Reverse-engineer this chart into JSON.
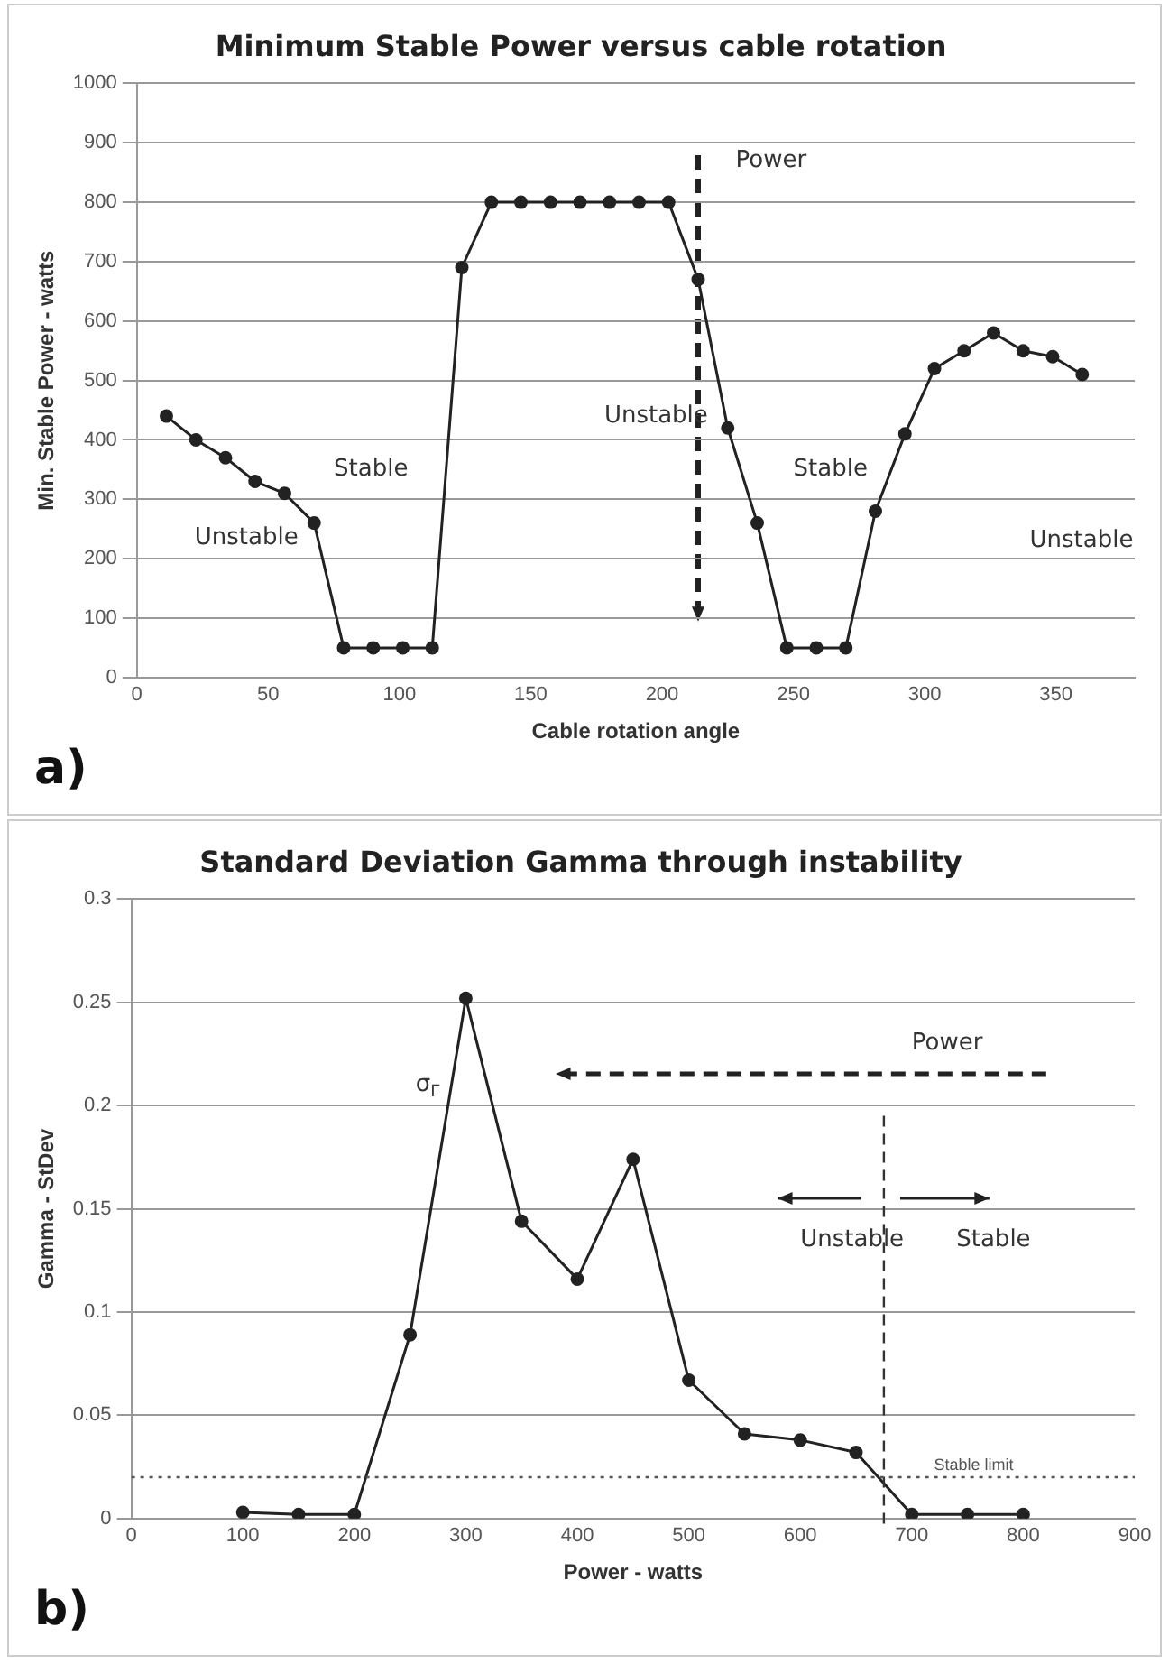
{
  "chart_data": [
    {
      "type": "line",
      "title": "Minimum Stable Power versus cable rotation",
      "xlabel": "Cable rotation angle",
      "ylabel": "Min. Stable Power - watts",
      "x": [
        11.25,
        22.5,
        33.75,
        45,
        56.25,
        67.5,
        78.75,
        90,
        101.25,
        112.5,
        123.75,
        135,
        146.25,
        157.5,
        168.75,
        180,
        191.25,
        202.5,
        213.75,
        225,
        236.25,
        247.5,
        258.75,
        270,
        281.25,
        292.5,
        303.75,
        315,
        326.25,
        337.5,
        348.75,
        360
      ],
      "series": [
        {
          "color": "#222222",
          "values": [
            440,
            400,
            370,
            330,
            310,
            260,
            50,
            50,
            50,
            50,
            690,
            800,
            800,
            800,
            800,
            800,
            800,
            800,
            670,
            420,
            260,
            50,
            50,
            50,
            280,
            410,
            520,
            550,
            580,
            550,
            540,
            510
          ]
        }
      ],
      "xlim": [
        0,
        380
      ],
      "xticks": [
        0,
        50,
        100,
        150,
        200,
        250,
        300,
        350
      ],
      "ylim": [
        0,
        1000
      ],
      "yticks": [
        0,
        100,
        200,
        300,
        400,
        500,
        600,
        700,
        800,
        900,
        1000
      ],
      "grid": "y",
      "marker": "circle",
      "legend": false,
      "annotations": [
        "Unstable",
        "Stable",
        "Unstable",
        "Stable",
        "Unstable",
        "Power",
        "a)"
      ]
    },
    {
      "type": "line",
      "title": "Standard Deviation Gamma through instability",
      "xlabel": "Power - watts",
      "ylabel": "Gamma - StDev",
      "x": [
        100,
        150,
        200,
        250,
        300,
        350,
        400,
        450,
        500,
        550,
        600,
        650,
        700,
        750,
        800
      ],
      "series": [
        {
          "color": "#222222",
          "values": [
            0.003,
            0.002,
            0.002,
            0.089,
            0.252,
            0.144,
            0.116,
            0.174,
            0.067,
            0.041,
            0.038,
            0.032,
            0.002,
            0.002,
            0.002
          ]
        }
      ],
      "xlim": [
        0,
        900
      ],
      "xticks": [
        0,
        100,
        200,
        300,
        400,
        500,
        600,
        700,
        800,
        900
      ],
      "ylim": [
        0,
        0.3
      ],
      "yticks": [
        0,
        0.05,
        0.1,
        0.15,
        0.2,
        0.25,
        0.3
      ],
      "grid": "y",
      "marker": "circle",
      "legend": false,
      "ref_lines": [
        {
          "axis": "x",
          "value": 675,
          "line_style": "dashed",
          "color": "#333333"
        },
        {
          "axis": "y",
          "value": 0.02,
          "label": "Stable limit",
          "line_style": "dotted",
          "color": "#555555"
        }
      ],
      "annotations": [
        "σ$_{Γ}$",
        "Power",
        "Unstable",
        "Stable",
        "b)"
      ]
    }
  ]
}
